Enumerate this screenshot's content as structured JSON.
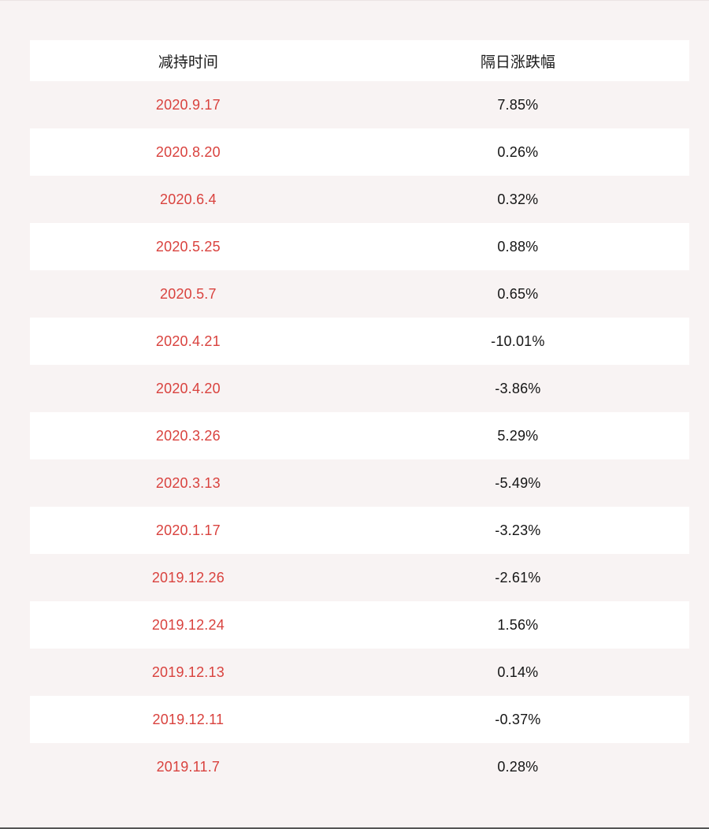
{
  "page": {
    "background_color": "#f8f3f3",
    "row_alt_color": "#ffffff",
    "date_text_color": "#d9423e",
    "value_text_color": "#151515"
  },
  "table": {
    "columns": [
      {
        "label": "减持时间"
      },
      {
        "label": "隔日涨跌幅"
      }
    ],
    "rows": [
      {
        "date": "2020.9.17",
        "change": "7.85%"
      },
      {
        "date": "2020.8.20",
        "change": "0.26%"
      },
      {
        "date": "2020.6.4",
        "change": "0.32%"
      },
      {
        "date": "2020.5.25",
        "change": "0.88%"
      },
      {
        "date": "2020.5.7",
        "change": "0.65%"
      },
      {
        "date": "2020.4.21",
        "change": "-10.01%"
      },
      {
        "date": "2020.4.20",
        "change": "-3.86%"
      },
      {
        "date": "2020.3.26",
        "change": "5.29%"
      },
      {
        "date": "2020.3.13",
        "change": "-5.49%"
      },
      {
        "date": "2020.1.17",
        "change": "-3.23%"
      },
      {
        "date": "2019.12.26",
        "change": "-2.61%"
      },
      {
        "date": "2019.12.24",
        "change": "1.56%"
      },
      {
        "date": "2019.12.13",
        "change": "0.14%"
      },
      {
        "date": "2019.12.11",
        "change": "-0.37%"
      },
      {
        "date": "2019.11.7",
        "change": "0.28%"
      }
    ]
  },
  "chart_data": {
    "type": "table",
    "title": "",
    "columns": [
      "减持时间",
      "隔日涨跌幅"
    ],
    "rows": [
      [
        "2020.9.17",
        "7.85%"
      ],
      [
        "2020.8.20",
        "0.26%"
      ],
      [
        "2020.6.4",
        "0.32%"
      ],
      [
        "2020.5.25",
        "0.88%"
      ],
      [
        "2020.5.7",
        "0.65%"
      ],
      [
        "2020.4.21",
        "-10.01%"
      ],
      [
        "2020.4.20",
        "-3.86%"
      ],
      [
        "2020.3.26",
        "5.29%"
      ],
      [
        "2020.3.13",
        "-5.49%"
      ],
      [
        "2020.1.17",
        "-3.23%"
      ],
      [
        "2019.12.26",
        "-2.61%"
      ],
      [
        "2019.12.24",
        "1.56%"
      ],
      [
        "2019.12.13",
        "0.14%"
      ],
      [
        "2019.12.11",
        "-0.37%"
      ],
      [
        "2019.11.7",
        "0.28%"
      ]
    ],
    "categories": [
      "2020.9.17",
      "2020.8.20",
      "2020.6.4",
      "2020.5.25",
      "2020.5.7",
      "2020.4.21",
      "2020.4.20",
      "2020.3.26",
      "2020.3.13",
      "2020.1.17",
      "2019.12.26",
      "2019.12.24",
      "2019.12.13",
      "2019.12.11",
      "2019.11.7"
    ],
    "values": [
      7.85,
      0.26,
      0.32,
      0.88,
      0.65,
      -10.01,
      -3.86,
      5.29,
      -5.49,
      -3.23,
      -2.61,
      1.56,
      0.14,
      -0.37,
      0.28
    ],
    "value_unit": "%",
    "layout": {
      "striped": true,
      "header_background": "#ffffff",
      "grid": false
    }
  }
}
